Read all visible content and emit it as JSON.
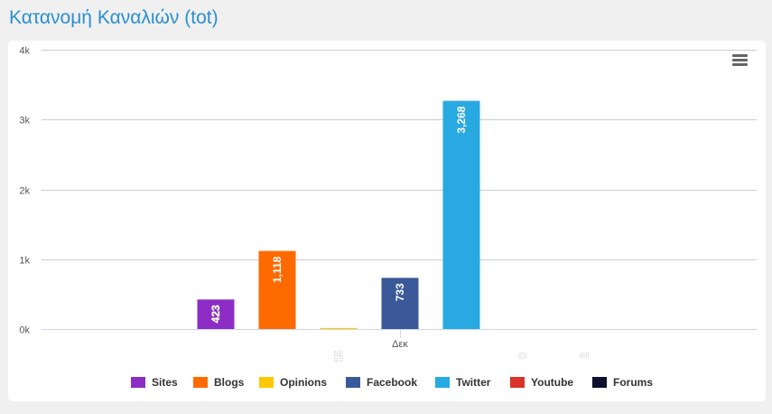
{
  "page": {
    "title": "Κατανομή Καναλιών (tot)"
  },
  "chart_data": {
    "type": "bar",
    "title": "",
    "xlabel": "",
    "ylabel": "",
    "categories": [
      "Δεκ"
    ],
    "ylim": [
      0,
      4000
    ],
    "yticks": [
      {
        "value": 0,
        "label": "0k"
      },
      {
        "value": 1000,
        "label": "1k"
      },
      {
        "value": 2000,
        "label": "2k"
      },
      {
        "value": 3000,
        "label": "3k"
      },
      {
        "value": 4000,
        "label": "4k"
      }
    ],
    "grid": true,
    "legend_position": "bottom",
    "series": [
      {
        "name": "Sites",
        "color": "#8e2dc5",
        "values": [
          423
        ],
        "label": "423"
      },
      {
        "name": "Blogs",
        "color": "#ff6a00",
        "values": [
          1118
        ],
        "label": "1,118"
      },
      {
        "name": "Opinions",
        "color": "#ffc800",
        "values": [
          15
        ],
        "label": "15"
      },
      {
        "name": "Facebook",
        "color": "#3b5998",
        "values": [
          733
        ],
        "label": "733"
      },
      {
        "name": "Twitter",
        "color": "#29a9e1",
        "values": [
          3268
        ],
        "label": "3,268"
      },
      {
        "name": "Youtube",
        "color": "#d9322a",
        "values": [
          0
        ],
        "label": "0"
      },
      {
        "name": "Forums",
        "color": "#0f0f2e",
        "values": [
          2
        ],
        "label": "2"
      }
    ]
  }
}
